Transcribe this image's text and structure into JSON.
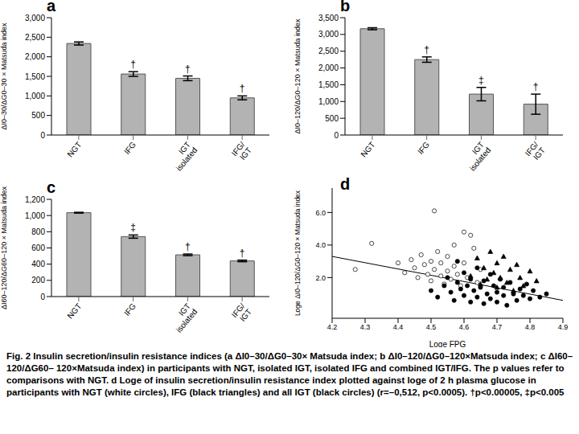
{
  "chart_data": [
    {
      "type": "bar",
      "panel": "a",
      "ylabel": "ΔI0–30/ΔG0–30 × Matsuda index",
      "categories": [
        "NGT",
        "IFG",
        "IGT isolated",
        "IFG/ IGT"
      ],
      "values": [
        2340,
        1560,
        1450,
        950
      ],
      "errors": [
        40,
        60,
        60,
        50
      ],
      "significance": [
        null,
        "†",
        "†",
        "†"
      ],
      "color": "#b3b3b3",
      "ylim": [
        0,
        3000
      ],
      "yticks": [
        0,
        500,
        {
          "value": 1000,
          "label": "1,000"
        },
        {
          "value": 1500,
          "label": "1,500"
        },
        {
          "value": 2000,
          "label": "2,000"
        },
        {
          "value": 2500,
          "label": "2,500"
        },
        {
          "value": 3000,
          "label": "3,000"
        }
      ]
    },
    {
      "type": "bar",
      "panel": "b",
      "ylabel": "ΔI0–120/ΔG0–120 × Matsuda index",
      "categories": [
        "NGT",
        "IFG",
        "IGT isolated",
        "IFG/ IGT"
      ],
      "values": [
        3170,
        2250,
        1220,
        920
      ],
      "errors": [
        30,
        80,
        200,
        300
      ],
      "significance": [
        null,
        "†",
        "‡",
        "†"
      ],
      "color": "#b3b3b3",
      "ylim": [
        0,
        3500
      ],
      "yticks": [
        0,
        500,
        {
          "value": 1000,
          "label": "1,000"
        },
        {
          "value": 1500,
          "label": "1,500"
        },
        {
          "value": 2000,
          "label": "2,000"
        },
        {
          "value": 2500,
          "label": "2,500"
        },
        {
          "value": 3000,
          "label": "3,000"
        },
        {
          "value": 3500,
          "label": "3,500"
        }
      ]
    },
    {
      "type": "bar",
      "panel": "c",
      "ylabel": "ΔI60–120/ΔG60–120 × Matsuda index",
      "categories": [
        "NGT",
        "IFG",
        "IGT isolated",
        "IFG/ IGT"
      ],
      "values": [
        1035,
        740,
        515,
        440
      ],
      "errors": [
        5,
        20,
        10,
        10
      ],
      "significance": [
        null,
        "‡",
        "†",
        "†"
      ],
      "color": "#b3b3b3",
      "ylim": [
        0,
        1200
      ],
      "yticks": [
        0,
        200,
        400,
        600,
        800,
        {
          "value": 1000,
          "label": "1,000"
        },
        {
          "value": 1200,
          "label": "1,200"
        }
      ]
    },
    {
      "type": "scatter",
      "panel": "d",
      "xlabel": "Loge FPG",
      "ylabel": "Loge ΔI0–120/ΔG0–120 × Matsuda index",
      "xlim": [
        4.2,
        4.9
      ],
      "xticks": [
        4.2,
        4.3,
        4.4,
        4.5,
        4.6,
        4.7,
        4.8,
        4.9
      ],
      "ylim": [
        -0.5,
        7.5
      ],
      "yticks": [
        {
          "value": 2,
          "label": "2.0"
        },
        {
          "value": 4,
          "label": "4.0"
        },
        {
          "value": 6,
          "label": "6.0"
        }
      ],
      "series": [
        {
          "color": "#ffffff",
          "marker": "circle",
          "x": [
            4.27,
            4.32,
            4.4,
            4.42,
            4.44,
            4.45,
            4.46,
            4.47,
            4.48,
            4.49,
            4.5,
            4.5,
            4.51,
            4.51,
            4.52,
            4.53,
            4.53,
            4.54,
            4.55,
            4.55,
            4.56,
            4.57,
            4.57,
            4.58,
            4.59,
            4.6,
            4.6,
            4.61,
            4.62,
            4.63,
            4.64,
            4.65
          ],
          "y": [
            2.5,
            4.1,
            2.9,
            2.3,
            3.1,
            2.6,
            2.0,
            3.4,
            2.8,
            2.2,
            3.0,
            1.8,
            6.1,
            2.5,
            3.6,
            2.1,
            2.9,
            1.6,
            3.3,
            2.4,
            1.9,
            2.7,
            4.0,
            2.2,
            1.5,
            4.8,
            2.9,
            2.0,
            4.6,
            3.8,
            1.7,
            2.5
          ]
        },
        {
          "color": "#000000",
          "marker": "triangle",
          "x": [
            4.62,
            4.64,
            4.65,
            4.66,
            4.67,
            4.68,
            4.69,
            4.7,
            4.7,
            4.71,
            4.72,
            4.73,
            4.74,
            4.75,
            4.76,
            4.77,
            4.78,
            4.8,
            4.82
          ],
          "y": [
            2.1,
            3.2,
            1.6,
            2.6,
            1.9,
            3.6,
            2.3,
            1.4,
            2.9,
            2.0,
            3.3,
            1.7,
            2.5,
            1.2,
            2.8,
            2.0,
            1.5,
            2.4,
            1.8
          ]
        },
        {
          "color": "#000000",
          "marker": "circle",
          "x": [
            4.5,
            4.52,
            4.54,
            4.55,
            4.56,
            4.57,
            4.58,
            4.59,
            4.6,
            4.6,
            4.61,
            4.62,
            4.62,
            4.63,
            4.64,
            4.64,
            4.65,
            4.66,
            4.66,
            4.67,
            4.68,
            4.68,
            4.69,
            4.7,
            4.7,
            4.71,
            4.72,
            4.72,
            4.73,
            4.74,
            4.75,
            4.76,
            4.77,
            4.78,
            4.79,
            4.8,
            4.81,
            4.83,
            4.85,
            4.58
          ],
          "y": [
            1.2,
            0.8,
            1.5,
            2.0,
            1.1,
            0.6,
            1.7,
            1.3,
            0.9,
            2.3,
            1.5,
            0.5,
            1.9,
            1.2,
            0.8,
            2.6,
            1.4,
            0.4,
            1.8,
            1.0,
            2.2,
            0.7,
            1.5,
            1.1,
            0.5,
            1.9,
            0.9,
            1.4,
            0.3,
            1.7,
            1.0,
            0.6,
            1.3,
            0.9,
            1.6,
            0.7,
            1.2,
            0.8,
            1.0,
            3.0
          ]
        }
      ],
      "regression": {
        "x": [
          4.2,
          4.9
        ],
        "y": [
          3.3,
          0.6
        ]
      }
    }
  ],
  "caption": "Fig. 2 Insulin secretion/insulin resistance indices (a ΔI0–30/ΔG0–30× Matsuda index; b ΔI0–120/ΔG0–120×Matsuda index; c ΔI60–120/ΔG60– 120×Matsuda index) in participants with NGT, isolated IGT, isolated IFG and combined IGT/IFG. The p values refer to comparisons with NGT. d Loge of insulin secretion/insulin resistance index plotted against loge of 2 h plasma glucose in participants with NGT (white circles), IFG (black triangles) and all IGT (black circles) (r=–0,512, p<0.0005). †p<0.00005, ‡p<0.005"
}
